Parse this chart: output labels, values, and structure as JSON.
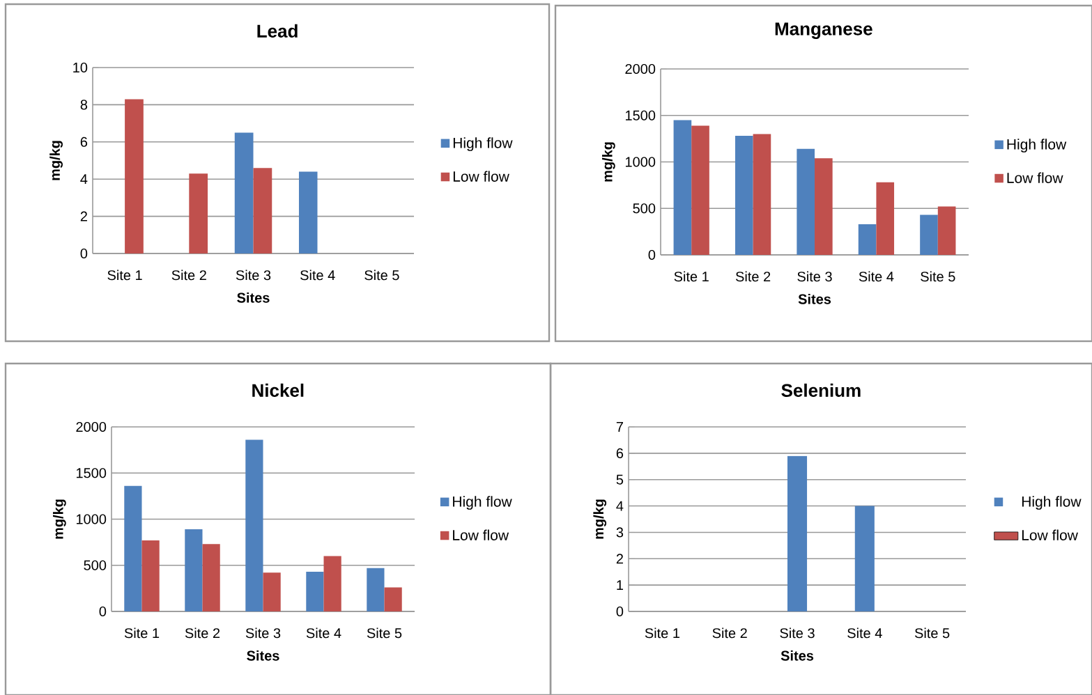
{
  "chart_data": [
    {
      "type": "bar",
      "title": "Lead",
      "xlabel": "Sites",
      "ylabel": "mg/kg",
      "categories": [
        "Site 1",
        "Site 2",
        "Site 3",
        "Site 4",
        "Site 5"
      ],
      "series": [
        {
          "name": "High flow",
          "color": "#4f81bd",
          "values": [
            null,
            null,
            6.5,
            4.4,
            null
          ]
        },
        {
          "name": "Low flow",
          "color": "#c0504d",
          "values": [
            8.3,
            4.3,
            4.6,
            null,
            null
          ]
        }
      ],
      "ylim": [
        0,
        10
      ],
      "yticks": [
        0,
        2,
        4,
        6,
        8,
        10
      ],
      "grid": "y",
      "legend": "right"
    },
    {
      "type": "bar",
      "title": "Manganese",
      "xlabel": "Sites",
      "ylabel": "mg/kg",
      "categories": [
        "Site 1",
        "Site 2",
        "Site 3",
        "Site 4",
        "Site 5"
      ],
      "series": [
        {
          "name": "High flow",
          "color": "#4f81bd",
          "values": [
            1450,
            1280,
            1140,
            330,
            430
          ]
        },
        {
          "name": "Low flow",
          "color": "#c0504d",
          "values": [
            1390,
            1300,
            1040,
            780,
            520
          ]
        }
      ],
      "ylim": [
        0,
        2000
      ],
      "yticks": [
        0,
        500,
        1000,
        1500,
        2000
      ],
      "grid": "y",
      "legend": "right"
    },
    {
      "type": "bar",
      "title": "Nickel",
      "xlabel": "Sites",
      "ylabel": "mg/kg",
      "categories": [
        "Site 1",
        "Site 2",
        "Site 3",
        "Site 4",
        "Site 5"
      ],
      "series": [
        {
          "name": "High flow",
          "color": "#4f81bd",
          "values": [
            1360,
            890,
            1860,
            430,
            470
          ]
        },
        {
          "name": "Low flow",
          "color": "#c0504d",
          "values": [
            770,
            730,
            420,
            600,
            260
          ]
        }
      ],
      "ylim": [
        0,
        2000
      ],
      "yticks": [
        0,
        500,
        1000,
        1500,
        2000
      ],
      "grid": "y",
      "legend": "right"
    },
    {
      "type": "bar",
      "title": "Selenium",
      "xlabel": "Sites",
      "ylabel": "mg/kg",
      "categories": [
        "Site 1",
        "Site 2",
        "Site 3",
        "Site 4",
        "Site 5"
      ],
      "series": [
        {
          "name": "High flow",
          "color": "#4f81bd",
          "values": [
            null,
            null,
            5.9,
            4.0,
            null
          ]
        },
        {
          "name": "Low flow",
          "color": "#c0504d",
          "values": [
            null,
            null,
            null,
            null,
            null
          ]
        }
      ],
      "ylim": [
        0,
        7
      ],
      "yticks": [
        0,
        1,
        2,
        3,
        4,
        5,
        6,
        7
      ],
      "grid": "y",
      "legend": "right"
    }
  ]
}
